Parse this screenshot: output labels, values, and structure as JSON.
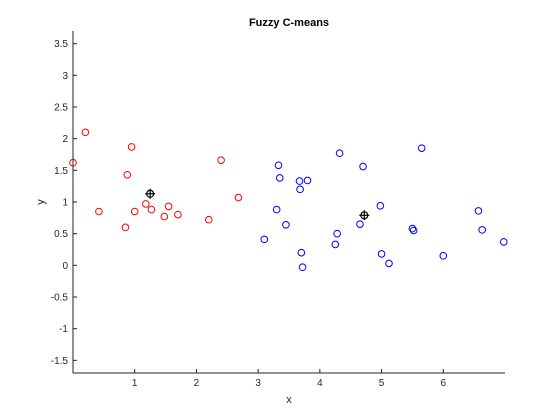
{
  "chart_data": {
    "type": "scatter",
    "title": "Fuzzy C-means",
    "xlabel": "x",
    "ylabel": "y",
    "xlim": [
      0,
      7
    ],
    "ylim": [
      -1.7,
      3.7
    ],
    "xticks": [
      1,
      2,
      3,
      4,
      5,
      6
    ],
    "yticks": [
      -1.5,
      -1,
      -0.5,
      0,
      0.5,
      1,
      1.5,
      2,
      2.5,
      3,
      3.5
    ],
    "grid": false,
    "colors": {
      "cluster1": "#ff0000",
      "cluster2": "#0000ff",
      "centers": "#000000"
    },
    "series": [
      {
        "points": [
          [
            0.0,
            1.62
          ],
          [
            0.2,
            2.1
          ],
          [
            0.42,
            0.85
          ],
          [
            0.85,
            0.6
          ],
          [
            0.88,
            1.43
          ],
          [
            0.95,
            1.87
          ],
          [
            1.0,
            0.85
          ],
          [
            1.18,
            0.97
          ],
          [
            1.27,
            0.88
          ],
          [
            1.48,
            0.77
          ],
          [
            1.55,
            0.93
          ],
          [
            1.7,
            0.8
          ],
          [
            2.2,
            0.72
          ],
          [
            2.4,
            1.66
          ],
          [
            2.68,
            1.07
          ]
        ]
      },
      {
        "points": [
          [
            3.1,
            0.41
          ],
          [
            3.3,
            0.88
          ],
          [
            3.33,
            1.58
          ],
          [
            3.35,
            1.38
          ],
          [
            3.45,
            0.64
          ],
          [
            3.67,
            1.33
          ],
          [
            3.68,
            1.2
          ],
          [
            3.7,
            0.2
          ],
          [
            3.72,
            -0.03
          ],
          [
            3.8,
            1.34
          ],
          [
            4.25,
            0.33
          ],
          [
            4.28,
            0.5
          ],
          [
            4.32,
            1.77
          ],
          [
            4.65,
            0.65
          ],
          [
            4.7,
            1.56
          ],
          [
            4.98,
            0.94
          ],
          [
            5.0,
            0.18
          ],
          [
            5.12,
            0.03
          ],
          [
            5.5,
            0.58
          ],
          [
            5.52,
            0.55
          ],
          [
            5.65,
            1.85
          ],
          [
            6.0,
            0.15
          ],
          [
            6.57,
            0.86
          ],
          [
            6.63,
            0.56
          ],
          [
            6.98,
            0.37
          ]
        ]
      }
    ],
    "centers": [
      [
        1.25,
        1.13
      ],
      [
        4.72,
        0.79
      ]
    ]
  }
}
